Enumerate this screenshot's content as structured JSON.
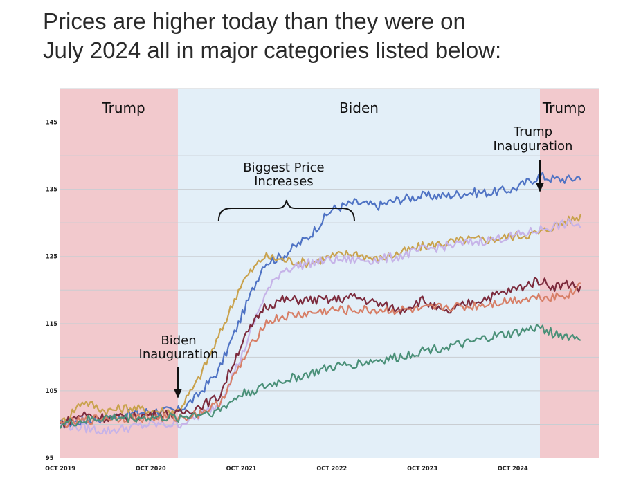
{
  "headline": {
    "line1": "Prices are higher today than they were on",
    "line2": "July 2024 all in major categories listed below:"
  },
  "chart_data": {
    "type": "line",
    "title": "Prices are higher today than they were on July 2024 all in major categories listed below:",
    "xlabel": "",
    "ylabel": "",
    "x_ticks": [
      "OCT 2019",
      "OCT 2020",
      "OCT 2021",
      "OCT 2022",
      "OCT 2023",
      "OCT 2024"
    ],
    "x_range": [
      2019.75,
      2025.7
    ],
    "y_ticks": [
      95,
      105,
      115,
      125,
      135,
      145
    ],
    "ylim": [
      95,
      150
    ],
    "grid": true,
    "periods": [
      {
        "label": "Trump",
        "start": 2019.75,
        "end": 2021.05,
        "color": "#f2c9cd"
      },
      {
        "label": "Biden",
        "start": 2021.05,
        "end": 2025.05,
        "color": "#e3eff8"
      },
      {
        "label": "Trump",
        "start": 2025.05,
        "end": 2025.7,
        "color": "#f2c9cd"
      }
    ],
    "annotations": [
      {
        "lines": [
          "Biden",
          "Inauguration"
        ],
        "x": 2021.05,
        "y": 102,
        "arrow": true
      },
      {
        "lines": [
          "Trump",
          "Inauguration"
        ],
        "x": 2025.05,
        "y": 137,
        "arrow": true
      },
      {
        "lines": [
          "Biggest Price",
          "Increases"
        ],
        "x": 2022.7,
        "y": 134.5,
        "brace_from": 2021.5,
        "brace_to": 2023.0
      }
    ],
    "series": [
      {
        "name": "blue",
        "color": "#4f73c4",
        "x": [
          2019.75,
          2020.0,
          2020.25,
          2020.5,
          2020.75,
          2021.05,
          2021.25,
          2021.5,
          2021.75,
          2022.0,
          2022.2,
          2022.5,
          2022.75,
          2023.0,
          2023.25,
          2023.5,
          2023.75,
          2024.0,
          2024.25,
          2024.5,
          2024.75,
          2025.05,
          2025.2,
          2025.4,
          2025.5
        ],
        "values": [
          100,
          100.5,
          101,
          101.5,
          102,
          102,
          104,
          108,
          116,
          124,
          125,
          128,
          132,
          133,
          132.5,
          133.5,
          134,
          134,
          134.5,
          134.5,
          135,
          137,
          136.5,
          136.5,
          137
        ]
      },
      {
        "name": "gold",
        "color": "#c9a24d",
        "x": [
          2019.75,
          2020.0,
          2020.25,
          2020.5,
          2020.75,
          2021.05,
          2021.25,
          2021.5,
          2021.75,
          2022.0,
          2022.2,
          2022.5,
          2022.75,
          2023.0,
          2023.25,
          2023.5,
          2023.75,
          2024.0,
          2024.25,
          2024.5,
          2024.75,
          2025.05,
          2025.2,
          2025.4,
          2025.5
        ],
        "values": [
          100,
          103.5,
          102,
          102.5,
          102,
          102,
          106,
          113,
          121,
          125,
          124.5,
          124,
          125,
          125.5,
          124.5,
          125.5,
          126.5,
          127,
          127.5,
          127.5,
          128,
          128.5,
          129.5,
          130.5,
          131
        ]
      },
      {
        "name": "lavender",
        "color": "#c6b3e8",
        "x": [
          2019.75,
          2020.0,
          2020.25,
          2020.5,
          2020.75,
          2021.05,
          2021.25,
          2021.5,
          2021.75,
          2022.0,
          2022.2,
          2022.5,
          2022.75,
          2023.0,
          2023.25,
          2023.5,
          2023.75,
          2024.0,
          2024.25,
          2024.5,
          2024.75,
          2025.05,
          2025.2,
          2025.4,
          2025.5
        ],
        "values": [
          100,
          99.5,
          99,
          99.5,
          100,
          100,
          101,
          103,
          110,
          119,
          123,
          124,
          124.5,
          124.5,
          124.5,
          125,
          126,
          126.5,
          127,
          127.5,
          128,
          129,
          129.5,
          130,
          129.5
        ]
      },
      {
        "name": "maroon",
        "color": "#7c2b3d",
        "x": [
          2019.75,
          2020.0,
          2020.25,
          2020.5,
          2020.75,
          2021.05,
          2021.25,
          2021.5,
          2021.75,
          2022.0,
          2022.2,
          2022.5,
          2022.75,
          2023.0,
          2023.25,
          2023.5,
          2023.75,
          2024.0,
          2024.25,
          2024.5,
          2024.75,
          2025.05,
          2025.2,
          2025.4,
          2025.5
        ],
        "values": [
          100,
          101.5,
          101,
          101,
          101.5,
          101.5,
          102.5,
          104,
          112,
          117.5,
          118.5,
          118.5,
          118.5,
          119,
          118,
          117,
          118.5,
          116.5,
          118,
          119,
          120,
          121.5,
          120.5,
          121,
          120
        ]
      },
      {
        "name": "salmon",
        "color": "#d77f67",
        "x": [
          2019.75,
          2020.0,
          2020.25,
          2020.5,
          2020.75,
          2021.05,
          2021.25,
          2021.5,
          2021.75,
          2022.0,
          2022.2,
          2022.5,
          2022.75,
          2023.0,
          2023.25,
          2023.5,
          2023.75,
          2024.0,
          2024.25,
          2024.5,
          2024.75,
          2025.05,
          2025.2,
          2025.4,
          2025.5
        ],
        "values": [
          100,
          100.5,
          101,
          101,
          101,
          101,
          101.5,
          103,
          109,
          115,
          116,
          116.5,
          117,
          117,
          117,
          117,
          117,
          117.5,
          117.5,
          118,
          118.5,
          119,
          119,
          119.5,
          121
        ]
      },
      {
        "name": "teal",
        "color": "#4a9078",
        "x": [
          2019.75,
          2020.0,
          2020.25,
          2020.5,
          2020.75,
          2021.05,
          2021.25,
          2021.5,
          2021.75,
          2022.0,
          2022.2,
          2022.5,
          2022.75,
          2023.0,
          2023.25,
          2023.5,
          2023.75,
          2024.0,
          2024.25,
          2024.5,
          2024.75,
          2025.05,
          2025.2,
          2025.4,
          2025.5
        ],
        "values": [
          100,
          100.5,
          101,
          101,
          101,
          101,
          101.5,
          102,
          104.5,
          105.5,
          106.5,
          107.5,
          108.5,
          109,
          109.5,
          110,
          111,
          111.5,
          112,
          113,
          113.5,
          114.5,
          113.5,
          113,
          113
        ]
      }
    ]
  }
}
